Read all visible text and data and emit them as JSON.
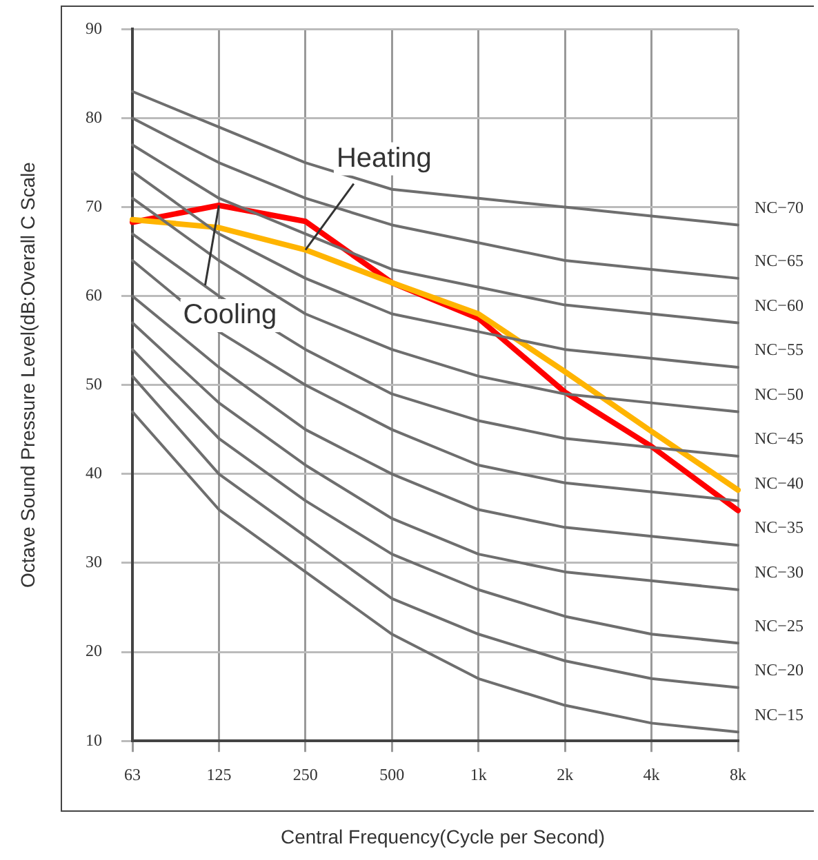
{
  "chart_data": {
    "type": "line",
    "xlabel": "Central Frequency(Cycle per Second)",
    "ylabel": "Octave Sound Pressure Level(dB:Overall C Scale",
    "categories": [
      "63",
      "125",
      "250",
      "500",
      "1k",
      "2k",
      "4k",
      "8k"
    ],
    "ylim": [
      10,
      90
    ],
    "yticks": [
      10,
      20,
      30,
      40,
      50,
      60,
      70,
      80,
      90
    ],
    "grid": true,
    "legend": false,
    "marker": "none",
    "line_style": "solid",
    "series": [
      {
        "name": "NC−70",
        "color": "#6e6e6e",
        "values": [
          83,
          79,
          75,
          72,
          71,
          70,
          69,
          68
        ]
      },
      {
        "name": "NC−65",
        "color": "#6e6e6e",
        "values": [
          80,
          75,
          71,
          68,
          66,
          64,
          63,
          62
        ]
      },
      {
        "name": "NC−60",
        "color": "#6e6e6e",
        "values": [
          77,
          71,
          67,
          63,
          61,
          59,
          58,
          57
        ]
      },
      {
        "name": "NC−55",
        "color": "#6e6e6e",
        "values": [
          74,
          67,
          62,
          58,
          56,
          54,
          53,
          52
        ]
      },
      {
        "name": "NC−50",
        "color": "#6e6e6e",
        "values": [
          71,
          64,
          58,
          54,
          51,
          49,
          48,
          47
        ]
      },
      {
        "name": "NC−45",
        "color": "#6e6e6e",
        "values": [
          67,
          60,
          54,
          49,
          46,
          44,
          43,
          42
        ]
      },
      {
        "name": "NC−40",
        "color": "#6e6e6e",
        "values": [
          64,
          56,
          50,
          45,
          41,
          39,
          38,
          37
        ]
      },
      {
        "name": "NC−35",
        "color": "#6e6e6e",
        "values": [
          60,
          52,
          45,
          40,
          36,
          34,
          33,
          32
        ]
      },
      {
        "name": "NC−30",
        "color": "#6e6e6e",
        "values": [
          57,
          48,
          41,
          35,
          31,
          29,
          28,
          27
        ]
      },
      {
        "name": "NC−25",
        "color": "#6e6e6e",
        "values": [
          54,
          44,
          37,
          31,
          27,
          24,
          22,
          21
        ]
      },
      {
        "name": "NC−20",
        "color": "#6e6e6e",
        "values": [
          51,
          40,
          33,
          26,
          22,
          19,
          17,
          16
        ]
      },
      {
        "name": "NC−15",
        "color": "#6e6e6e",
        "values": [
          47,
          36,
          29,
          22,
          17,
          14,
          12,
          11
        ]
      },
      {
        "color": "#ffb400",
        "values": [
          68.6,
          67.7,
          65.2,
          61.5,
          58,
          51.5,
          44.8,
          38.2
        ]
      },
      {
        "color": "#ff0000",
        "values": [
          68.3,
          70.2,
          68.4,
          61.5,
          57.5,
          49.2,
          43.1,
          35.9
        ]
      }
    ],
    "annotations": [
      {
        "text": "Heating",
        "x": "250",
        "y": 65.2
      },
      {
        "text": "Cooling",
        "x": "125",
        "y": 70.2
      }
    ]
  }
}
